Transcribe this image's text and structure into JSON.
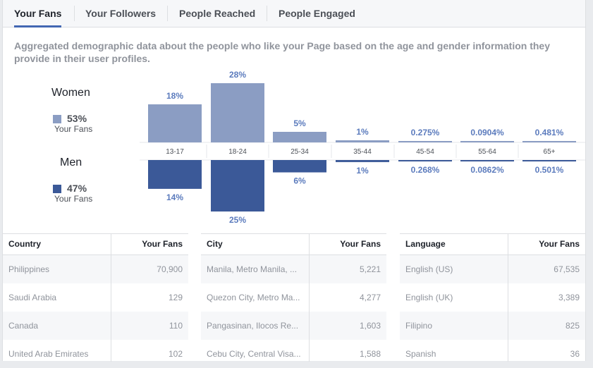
{
  "tabs": [
    {
      "label": "Your Fans",
      "active": true
    },
    {
      "label": "Your Followers",
      "active": false
    },
    {
      "label": "People Reached",
      "active": false
    },
    {
      "label": "People Engaged",
      "active": false
    }
  ],
  "description": "Aggregated demographic data about the people who like your Page based on the age and gender information they provide in their user profiles.",
  "legend": {
    "women": {
      "title": "Women",
      "pct": "53%",
      "sub": "Your Fans",
      "color": "#8b9dc3"
    },
    "men": {
      "title": "Men",
      "pct": "47%",
      "sub": "Your Fans",
      "color": "#3b5998"
    }
  },
  "chart_data": {
    "type": "bar",
    "categories": [
      "13-17",
      "18-24",
      "25-34",
      "35-44",
      "45-54",
      "55-64",
      "65+"
    ],
    "series": [
      {
        "name": "Women",
        "values": [
          18,
          28,
          5,
          1,
          0.275,
          0.0904,
          0.481
        ],
        "labels": [
          "18%",
          "28%",
          "5%",
          "1%",
          "0.275%",
          "0.0904%",
          "0.481%"
        ]
      },
      {
        "name": "Men",
        "values": [
          14,
          25,
          6,
          1,
          0.268,
          0.0862,
          0.501
        ],
        "labels": [
          "14%",
          "25%",
          "6%",
          "1%",
          "0.268%",
          "0.0862%",
          "0.501%"
        ]
      }
    ],
    "colors": {
      "women": "#8b9dc3",
      "men": "#3b5998"
    }
  },
  "tables": [
    {
      "headers": [
        "Country",
        "Your Fans"
      ],
      "rows": [
        [
          "Philippines",
          "70,900"
        ],
        [
          "Saudi Arabia",
          "129"
        ],
        [
          "Canada",
          "110"
        ],
        [
          "United Arab Emirates",
          "102"
        ]
      ]
    },
    {
      "headers": [
        "City",
        "Your Fans"
      ],
      "rows": [
        [
          "Manila, Metro Manila, ...",
          "5,221"
        ],
        [
          "Quezon City, Metro Ma...",
          "4,277"
        ],
        [
          "Pangasinan, Ilocos Re...",
          "1,603"
        ],
        [
          "Cebu City, Central Visa...",
          "1,588"
        ]
      ]
    },
    {
      "headers": [
        "Language",
        "Your Fans"
      ],
      "rows": [
        [
          "English (US)",
          "67,535"
        ],
        [
          "English (UK)",
          "3,389"
        ],
        [
          "Filipino",
          "825"
        ],
        [
          "Spanish",
          "36"
        ]
      ]
    }
  ]
}
